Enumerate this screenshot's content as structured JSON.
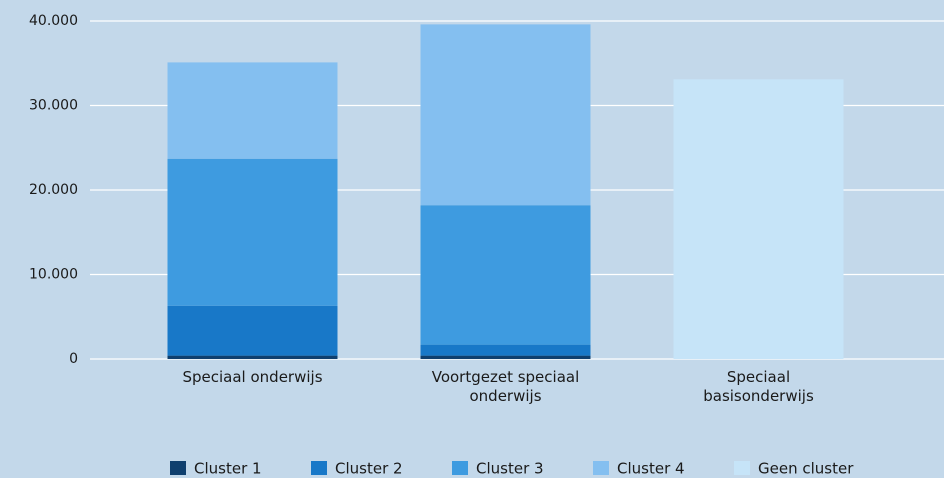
{
  "chart_data": {
    "type": "stacked_bar",
    "categories": [
      "Speciaal onderwijs",
      "Voortgezet speciaal onderwijs",
      "Speciaal basisonderwijs"
    ],
    "series": [
      {
        "name": "Cluster 1",
        "color": "#0f3f6e",
        "values": [
          400,
          400,
          0
        ]
      },
      {
        "name": "Cluster 2",
        "color": "#1878c8",
        "values": [
          5900,
          1300,
          0
        ]
      },
      {
        "name": "Cluster 3",
        "color": "#3e9be0",
        "values": [
          17400,
          16500,
          0
        ]
      },
      {
        "name": "Cluster 4",
        "color": "#84bff0",
        "values": [
          11400,
          21400,
          0
        ]
      },
      {
        "name": "Geen cluster",
        "color": "#c6e4f8",
        "values": [
          0,
          0,
          33100
        ]
      }
    ],
    "ylim": [
      0,
      40000
    ],
    "yticks": [
      0,
      {
        "value": 10000,
        "label": "10.000"
      },
      {
        "value": 20000,
        "label": "20.000"
      },
      {
        "value": 30000,
        "label": "30.000"
      },
      {
        "value": 40000,
        "label": "40.000"
      }
    ],
    "grid": true
  }
}
